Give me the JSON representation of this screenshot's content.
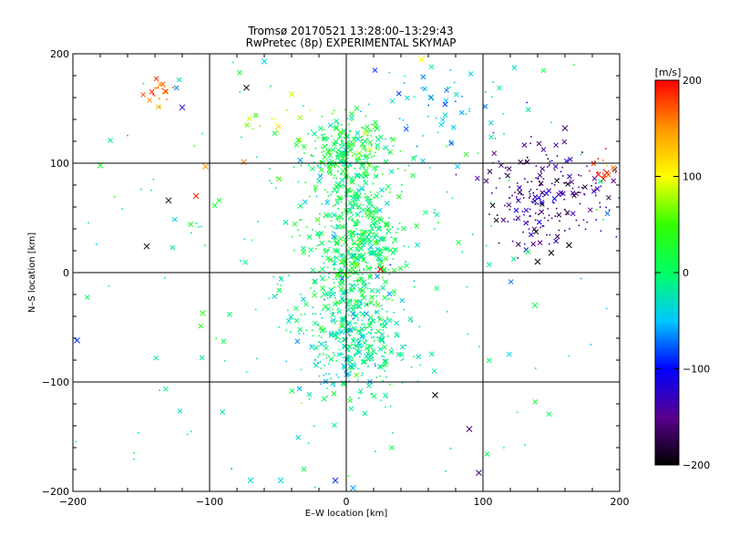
{
  "chart_data": {
    "type": "scatter",
    "title_line1": "Tromsø 20170521 13:28:00–13:29:43",
    "title_line2": "RwPretec (8p) EXPERIMENTAL SKYMAP",
    "xlabel": "E–W location [km]",
    "ylabel": "N–S location [km]",
    "xlim": [
      -200,
      200
    ],
    "ylim": [
      -200,
      200
    ],
    "xticks": [
      -200,
      -100,
      0,
      100,
      200
    ],
    "yticks": [
      -200,
      -100,
      0,
      100,
      200
    ],
    "grid_lines_x": [
      -100,
      0,
      100
    ],
    "grid_lines_y": [
      -100,
      0,
      100
    ],
    "colorbar": {
      "unit_label": "[m/s]",
      "range": [
        -200,
        200
      ],
      "ticks": [
        200,
        100,
        0,
        -100,
        -200
      ],
      "colormap": [
        "#000000",
        "#5a0090",
        "#0000ff",
        "#00c8ff",
        "#00ff64",
        "#32ff00",
        "#ffff00",
        "#ff9600",
        "#ff0000"
      ]
    },
    "point_groups": [
      {
        "name": "central band north",
        "x_center": 0,
        "y_center": 110,
        "x_spread": 15,
        "y_spread": 15,
        "velocity": 10,
        "count": 260
      },
      {
        "name": "central band middle",
        "x_center": 5,
        "y_center": 30,
        "x_spread": 18,
        "y_spread": 40,
        "velocity": 5,
        "count": 620
      },
      {
        "name": "central band south",
        "x_center": 5,
        "y_center": -60,
        "x_spread": 18,
        "y_spread": 30,
        "velocity": -15,
        "count": 380
      },
      {
        "name": "eastern cluster",
        "x_center": 145,
        "y_center": 70,
        "x_spread": 22,
        "y_spread": 22,
        "velocity": -150,
        "count": 220
      },
      {
        "name": "northwest red cluster",
        "x_center": -135,
        "y_center": 165,
        "x_spread": 6,
        "y_spread": 7,
        "velocity": 175,
        "count": 22
      },
      {
        "name": "northwest yellow cluster",
        "x_center": -55,
        "y_center": 140,
        "x_spread": 12,
        "y_spread": 12,
        "velocity": 90,
        "count": 16
      },
      {
        "name": "northeast cyan arc",
        "x_center": 75,
        "y_center": 150,
        "x_spread": 25,
        "y_spread": 22,
        "velocity": -45,
        "count": 70
      },
      {
        "name": "eastern red edge",
        "x_center": 190,
        "y_center": 95,
        "x_spread": 6,
        "y_spread": 8,
        "velocity": 190,
        "count": 18
      },
      {
        "name": "background scatter",
        "x_center": 0,
        "y_center": 0,
        "x_spread": 110,
        "y_spread": 110,
        "velocity": -10,
        "count": 220
      }
    ],
    "x_markers": [
      {
        "x": -73,
        "y": 169,
        "v": -200
      },
      {
        "x": -130,
        "y": 66,
        "v": -200
      },
      {
        "x": -146,
        "y": 24,
        "v": -200
      },
      {
        "x": 65,
        "y": -112,
        "v": -200
      },
      {
        "x": 90,
        "y": -143,
        "v": -160
      },
      {
        "x": 97,
        "y": -183,
        "v": -160
      },
      {
        "x": 160,
        "y": 132,
        "v": -160
      },
      {
        "x": 140,
        "y": 10,
        "v": -200
      },
      {
        "x": 150,
        "y": 18,
        "v": -200
      },
      {
        "x": 163,
        "y": 25,
        "v": -200
      },
      {
        "x": -60,
        "y": 193,
        "v": -40
      },
      {
        "x": -70,
        "y": -190,
        "v": -40
      },
      {
        "x": -48,
        "y": -190,
        "v": -40
      },
      {
        "x": 5,
        "y": -197,
        "v": -60
      },
      {
        "x": -8,
        "y": -190,
        "v": -90
      },
      {
        "x": 55,
        "y": 195,
        "v": 100
      },
      {
        "x": -40,
        "y": 163,
        "v": 90
      },
      {
        "x": -120,
        "y": 151,
        "v": -120
      },
      {
        "x": -103,
        "y": 97,
        "v": 150
      },
      {
        "x": -110,
        "y": 70,
        "v": 190
      },
      {
        "x": -75,
        "y": 101,
        "v": 160
      },
      {
        "x": -105,
        "y": -37,
        "v": 40
      },
      {
        "x": 25,
        "y": 3,
        "v": 200
      },
      {
        "x": 138,
        "y": -30,
        "v": 10
      },
      {
        "x": -197,
        "y": -62,
        "v": -90
      },
      {
        "x": -180,
        "y": 98,
        "v": 30
      }
    ]
  }
}
